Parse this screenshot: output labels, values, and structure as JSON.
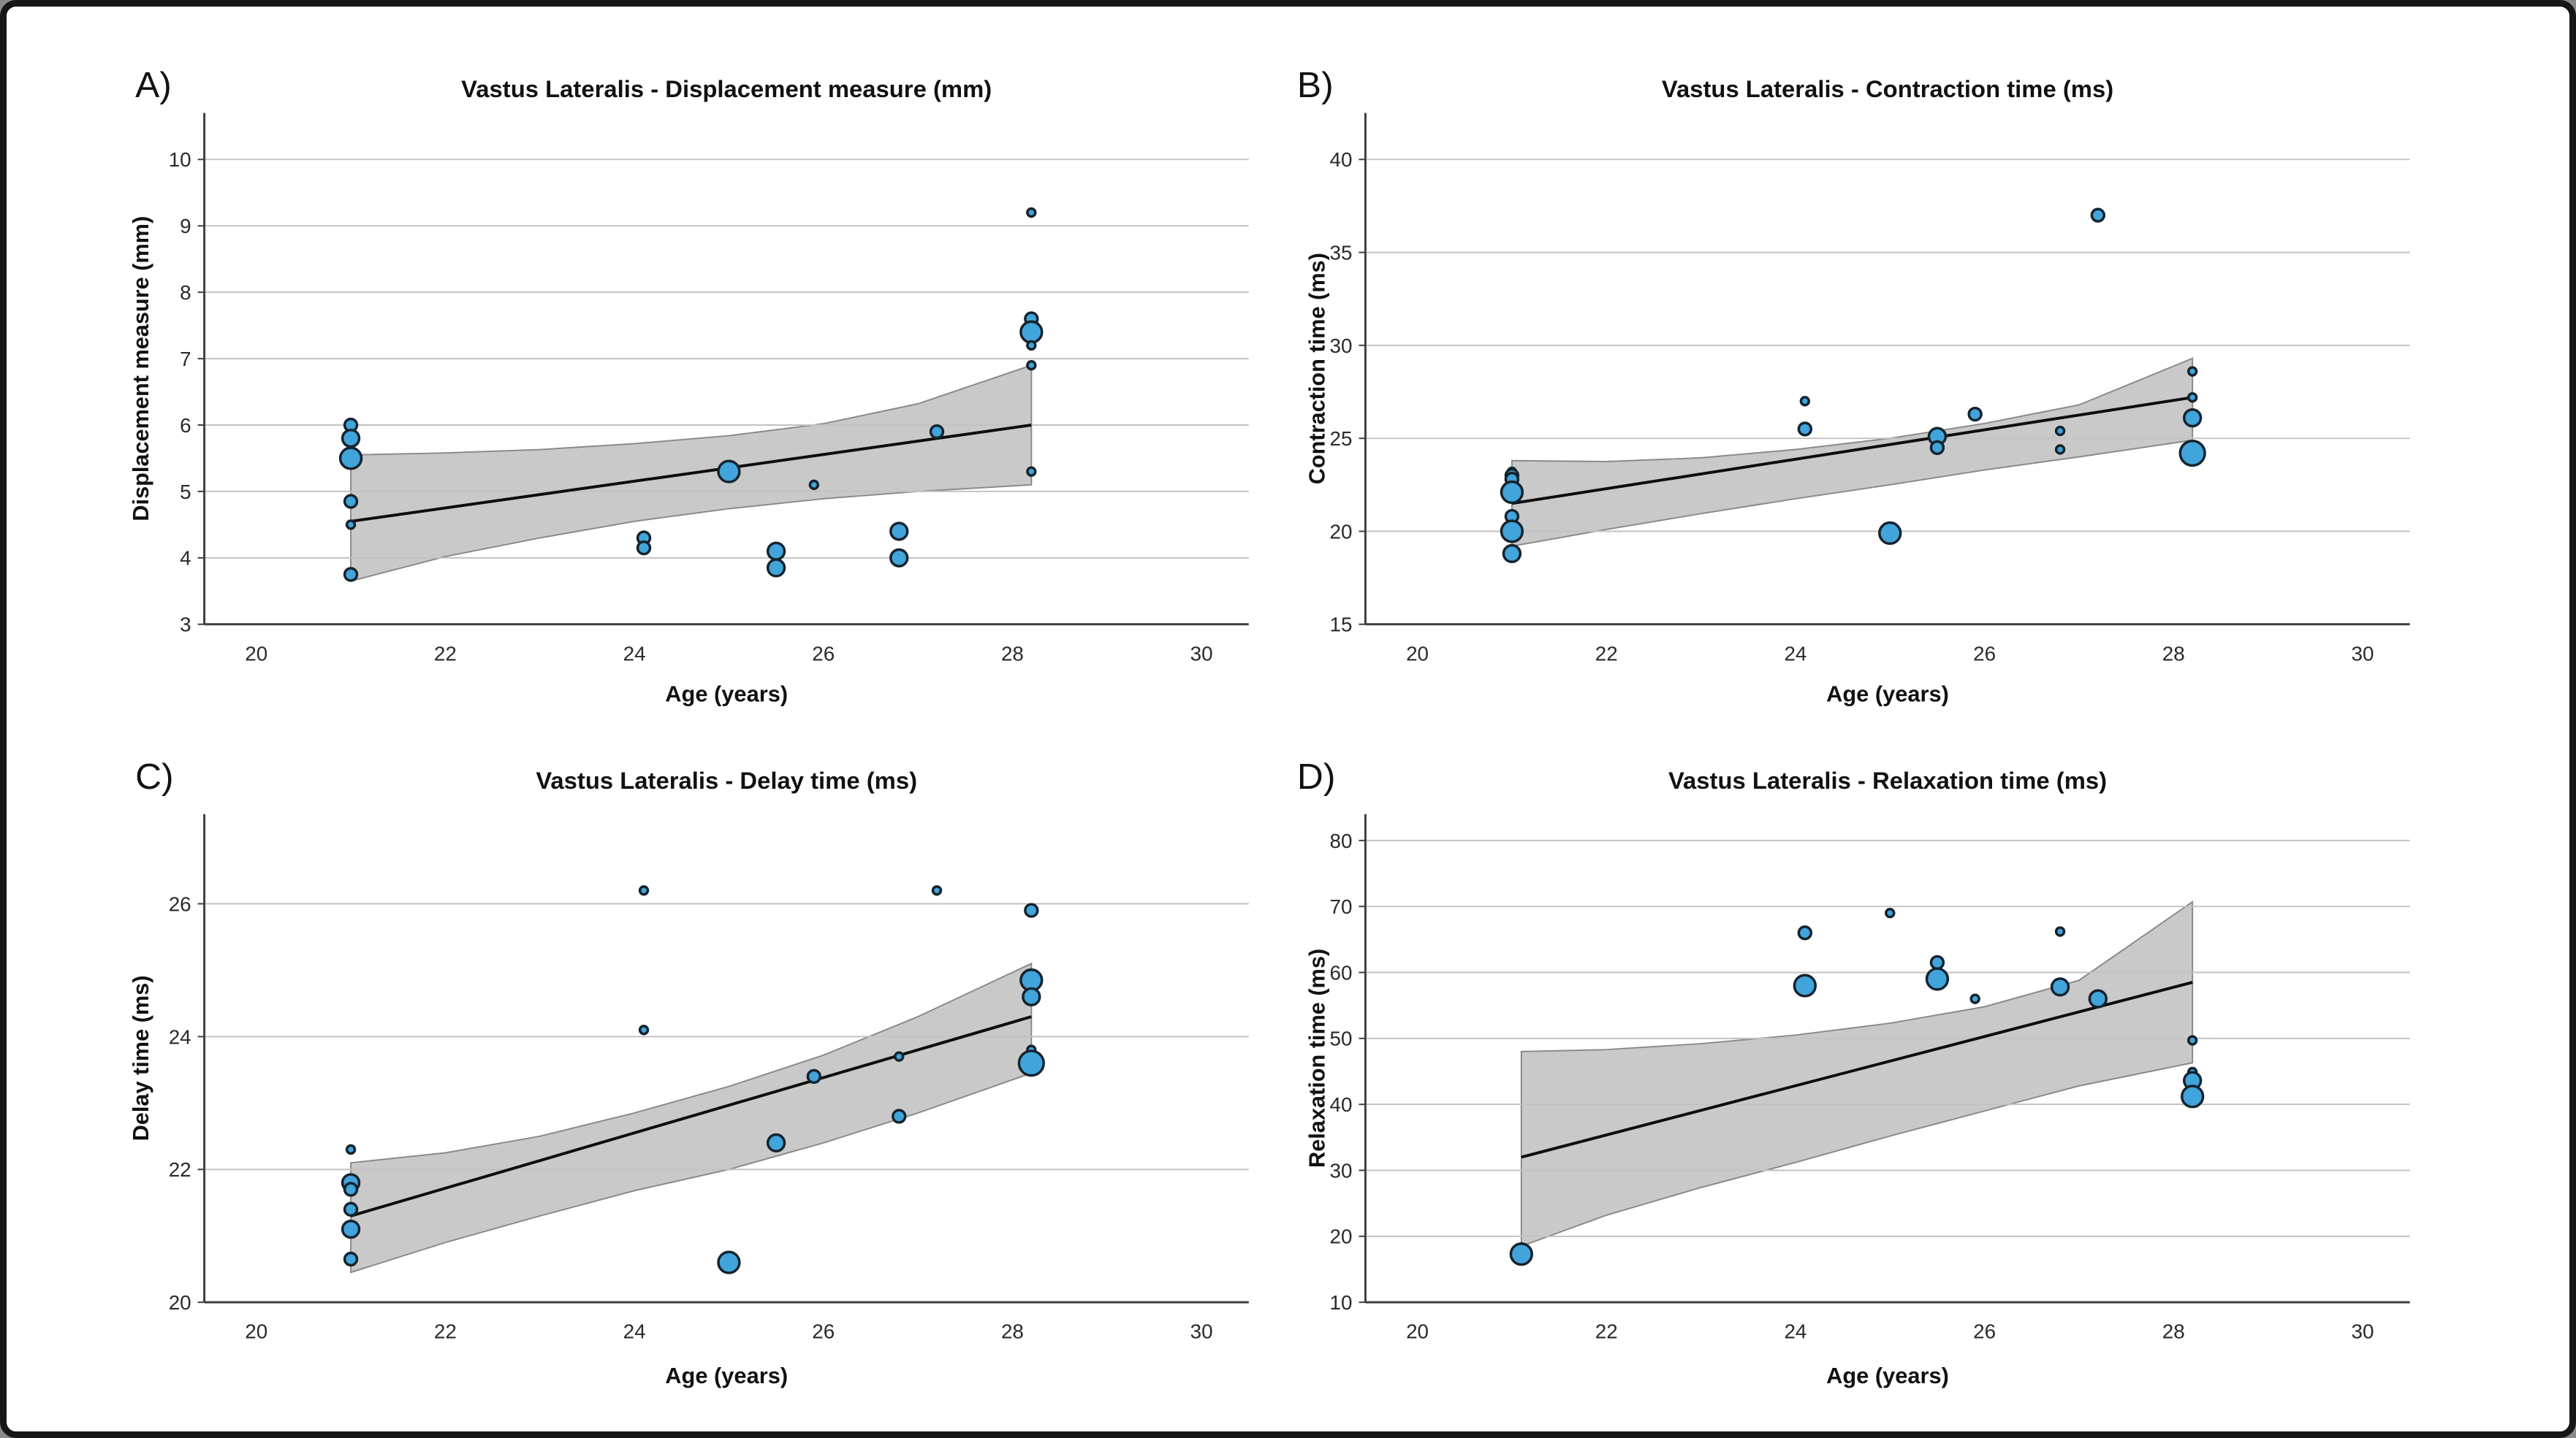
{
  "figure": {
    "background": "#ffffff",
    "border_color": "#161616",
    "accent_dot_fill": "#41a4da",
    "accent_dot_stroke": "#14232e",
    "band_fill": "#c9c9c9",
    "band_stroke": "#8a8a8a",
    "regression_color": "#0d0d0d",
    "grid_color": "#c2c2c2",
    "axis_color": "#3f3f3f",
    "tick_text_color": "#2a2a2a",
    "title_text_color": "#111111"
  },
  "chart_data": [
    {
      "type": "scatter",
      "letter": "A)",
      "title": "Vastus Lateralis - Displacement measure (mm)",
      "xlabel": "Age (years)",
      "ylabel": "Displacement measure (mm)",
      "x_ticks": [
        20,
        22,
        24,
        26,
        28,
        30
      ],
      "y_ticks": [
        3,
        4,
        5,
        6,
        7,
        8,
        9,
        10
      ],
      "xlim": [
        19.45,
        30.5
      ],
      "ylim": [
        3,
        10.7
      ],
      "grid": "horizontal",
      "legend": "none",
      "points": [
        [
          21,
          6.0,
          2
        ],
        [
          21,
          5.8,
          3
        ],
        [
          21,
          5.5,
          4
        ],
        [
          21,
          4.85,
          2
        ],
        [
          21,
          4.5,
          1
        ],
        [
          21,
          3.75,
          2
        ],
        [
          24.1,
          4.3,
          2
        ],
        [
          24.1,
          4.15,
          2
        ],
        [
          25,
          5.3,
          4
        ],
        [
          25.5,
          4.1,
          3
        ],
        [
          25.5,
          3.85,
          3
        ],
        [
          25.9,
          5.1,
          1
        ],
        [
          26.8,
          4.4,
          3
        ],
        [
          26.8,
          4.0,
          3
        ],
        [
          27.2,
          5.9,
          2
        ],
        [
          28.2,
          9.2,
          1
        ],
        [
          28.2,
          7.6,
          2
        ],
        [
          28.2,
          7.4,
          4
        ],
        [
          28.2,
          7.2,
          1
        ],
        [
          28.2,
          6.9,
          1
        ],
        [
          28.2,
          5.3,
          1
        ]
      ],
      "regression": [
        [
          21,
          4.55
        ],
        [
          28.2,
          6.0
        ]
      ],
      "ci_x": [
        21,
        22,
        23,
        24,
        25,
        26,
        27,
        28.2
      ],
      "ci_upper": [
        5.55,
        5.58,
        5.63,
        5.72,
        5.84,
        6.02,
        6.32,
        6.9
      ],
      "ci_lower": [
        3.65,
        4.02,
        4.3,
        4.55,
        4.74,
        4.89,
        5.0,
        5.1
      ]
    },
    {
      "type": "scatter",
      "letter": "B)",
      "title": "Vastus Lateralis - Contraction time (ms)",
      "xlabel": "Age (years)",
      "ylabel": "Contraction time (ms)",
      "x_ticks": [
        20,
        22,
        24,
        26,
        28,
        30
      ],
      "y_ticks": [
        15,
        20,
        25,
        30,
        35,
        40
      ],
      "xlim": [
        19.45,
        30.5
      ],
      "ylim": [
        15,
        42.5
      ],
      "grid": "horizontal",
      "legend": "none",
      "points": [
        [
          21,
          23.2,
          1
        ],
        [
          21,
          23.0,
          2
        ],
        [
          21,
          22.8,
          2
        ],
        [
          21,
          22.1,
          4
        ],
        [
          21,
          20.8,
          2
        ],
        [
          21,
          20.0,
          4
        ],
        [
          21,
          18.8,
          3
        ],
        [
          24.1,
          27.0,
          1
        ],
        [
          24.1,
          25.5,
          2
        ],
        [
          25,
          19.9,
          4
        ],
        [
          25.5,
          25.1,
          3
        ],
        [
          25.5,
          24.5,
          2
        ],
        [
          25.9,
          26.3,
          2
        ],
        [
          26.8,
          25.4,
          1
        ],
        [
          26.8,
          24.4,
          1
        ],
        [
          27.2,
          37.0,
          2
        ],
        [
          28.2,
          28.6,
          1
        ],
        [
          28.2,
          27.2,
          1
        ],
        [
          28.2,
          26.1,
          3
        ],
        [
          28.2,
          24.2,
          5
        ]
      ],
      "regression": [
        [
          21,
          21.5
        ],
        [
          28.2,
          27.2
        ]
      ],
      "ci_x": [
        21,
        22,
        23,
        24,
        25,
        26,
        27,
        28.2
      ],
      "ci_upper": [
        23.8,
        23.75,
        23.95,
        24.4,
        25.0,
        25.8,
        26.8,
        29.3
      ],
      "ci_lower": [
        19.2,
        20.1,
        20.95,
        21.75,
        22.5,
        23.3,
        24.0,
        24.9
      ]
    },
    {
      "type": "scatter",
      "letter": "C)",
      "title": "Vastus Lateralis - Delay time (ms)",
      "xlabel": "Age (years)",
      "ylabel": "Delay time (ms)",
      "x_ticks": [
        20,
        22,
        24,
        26,
        28,
        30
      ],
      "y_ticks": [
        20,
        22,
        24,
        26
      ],
      "xlim": [
        19.45,
        30.5
      ],
      "ylim": [
        20,
        27.35
      ],
      "grid": "horizontal",
      "legend": "none",
      "points": [
        [
          21,
          22.3,
          1
        ],
        [
          21,
          21.8,
          3
        ],
        [
          21,
          21.7,
          2
        ],
        [
          21,
          21.4,
          2
        ],
        [
          21,
          21.1,
          3
        ],
        [
          21,
          20.65,
          2
        ],
        [
          24.1,
          26.2,
          1
        ],
        [
          24.1,
          24.1,
          1
        ],
        [
          25,
          20.6,
          4
        ],
        [
          25.5,
          22.4,
          3
        ],
        [
          25.9,
          23.4,
          2
        ],
        [
          26.8,
          23.7,
          1
        ],
        [
          26.8,
          22.8,
          2
        ],
        [
          27.2,
          26.2,
          1
        ],
        [
          28.2,
          25.9,
          2
        ],
        [
          28.2,
          24.85,
          4
        ],
        [
          28.2,
          24.6,
          3
        ],
        [
          28.2,
          23.8,
          1
        ],
        [
          28.2,
          23.6,
          5
        ]
      ],
      "regression": [
        [
          21,
          21.3
        ],
        [
          28.2,
          24.3
        ]
      ],
      "ci_x": [
        21,
        22,
        23,
        24,
        25,
        26,
        27,
        28.2
      ],
      "ci_upper": [
        22.1,
        22.25,
        22.5,
        22.85,
        23.25,
        23.72,
        24.3,
        25.1
      ],
      "ci_lower": [
        20.45,
        20.9,
        21.3,
        21.68,
        22.0,
        22.4,
        22.85,
        23.45
      ]
    },
    {
      "type": "scatter",
      "letter": "D)",
      "title": "Vastus Lateralis - Relaxation time (ms)",
      "xlabel": "Age (years)",
      "ylabel": "Relaxation time (ms)",
      "x_ticks": [
        20,
        22,
        24,
        26,
        28,
        30
      ],
      "y_ticks": [
        10,
        20,
        30,
        40,
        50,
        60,
        70,
        80
      ],
      "xlim": [
        19.45,
        30.5
      ],
      "ylim": [
        10,
        84
      ],
      "grid": "horizontal",
      "legend": "none",
      "points": [
        [
          21.1,
          18.3,
          1
        ],
        [
          21.1,
          17.3,
          4
        ],
        [
          24.1,
          66,
          2
        ],
        [
          24.1,
          58,
          4
        ],
        [
          25,
          69,
          1
        ],
        [
          25.5,
          61.5,
          2
        ],
        [
          25.5,
          59,
          4
        ],
        [
          25.9,
          56,
          1
        ],
        [
          26.8,
          66.2,
          1
        ],
        [
          26.8,
          57.8,
          3
        ],
        [
          27.2,
          56,
          3
        ],
        [
          28.2,
          49.7,
          1
        ],
        [
          28.2,
          44.9,
          1
        ],
        [
          28.2,
          43.6,
          3
        ],
        [
          28.2,
          41.2,
          4
        ]
      ],
      "regression": [
        [
          21.1,
          32
        ],
        [
          28.2,
          58.5
        ]
      ],
      "ci_x": [
        21.1,
        22,
        23,
        24,
        25,
        26,
        27,
        28.2
      ],
      "ci_upper": [
        48.0,
        48.3,
        49.2,
        50.5,
        52.3,
        54.8,
        58.8,
        70.7
      ],
      "ci_lower": [
        18.5,
        23.2,
        27.4,
        31.2,
        35.2,
        39.0,
        42.8,
        46.3
      ]
    }
  ]
}
